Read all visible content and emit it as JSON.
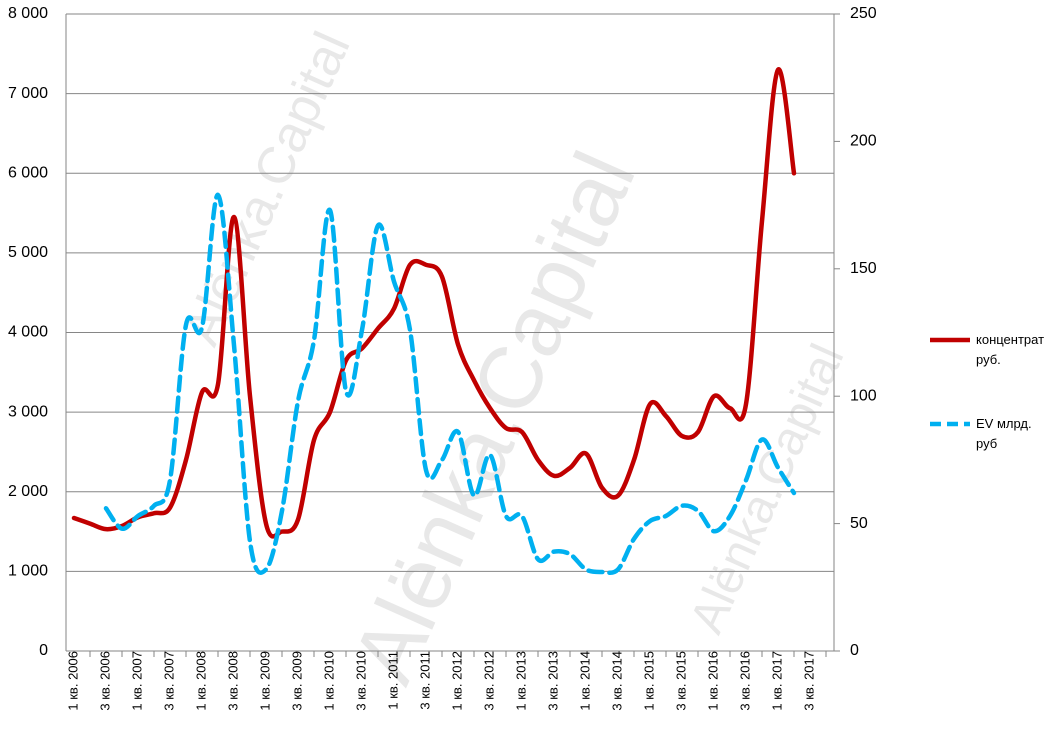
{
  "chart_data": {
    "type": "line",
    "watermark": "Alёnka.Capital",
    "categories": [
      "1 кв. 2006",
      null,
      "3 кв. 2006",
      null,
      "1 кв. 2007",
      null,
      "3 кв. 2007",
      null,
      "1 кв. 2008",
      null,
      "3 кв. 2008",
      null,
      "1 кв. 2009",
      null,
      "3 кв. 2009",
      null,
      "1 кв. 2010",
      null,
      "3 кв. 2010",
      null,
      "1 кв. 2011",
      null,
      "3 кв. 2011",
      null,
      "1 кв. 2012",
      null,
      "3 кв. 2012",
      null,
      "1 кв. 2013",
      null,
      "3 кв. 2013",
      null,
      "1 кв. 2014",
      null,
      "3 кв. 2014",
      null,
      "1 кв. 2015",
      null,
      "3 кв. 2015",
      null,
      "1 кв. 2016",
      null,
      "3 кв. 2016",
      null,
      "1 кв. 2017",
      null,
      "3 кв. 2017",
      null
    ],
    "series": [
      {
        "name": "концентрат руб.",
        "color": "#c00000",
        "dash": false,
        "values": [
          1670,
          1600,
          1530,
          1570,
          1680,
          1730,
          1800,
          2400,
          3250,
          3350,
          5450,
          3200,
          1600,
          1500,
          1650,
          2650,
          3000,
          3650,
          3800,
          4050,
          4300,
          4850,
          4850,
          4700,
          3850,
          3400,
          3050,
          2800,
          2750,
          2400,
          2200,
          2300,
          2480,
          2050,
          1950,
          2400,
          3100,
          2950,
          2700,
          2750,
          3200,
          3050,
          3100,
          5400,
          7300,
          6000,
          null,
          null
        ]
      },
      {
        "name": "EV млрд. руб",
        "color": "#00b0f0",
        "dash": true,
        "axis": "y2",
        "values": [
          null,
          null,
          56,
          48,
          53,
          57,
          67,
          128,
          127,
          179,
          120,
          43,
          32,
          55,
          98,
          122,
          173,
          102,
          126,
          167,
          145,
          126,
          71,
          75,
          86,
          61,
          77,
          53,
          53,
          36,
          39,
          38,
          32,
          31,
          32,
          44,
          51,
          53,
          57,
          55,
          47,
          53,
          67,
          83,
          72,
          62,
          null,
          null
        ]
      }
    ],
    "ylim": [
      0,
      8000
    ],
    "yticks": [
      0,
      {
        "value": 1000,
        "label": "1 000"
      },
      {
        "value": 2000,
        "label": "2 000"
      },
      {
        "value": 3000,
        "label": "3 000"
      },
      {
        "value": 4000,
        "label": "4 000"
      },
      {
        "value": 5000,
        "label": "5 000"
      },
      {
        "value": 6000,
        "label": "6 000"
      },
      {
        "value": 7000,
        "label": "7 000"
      },
      {
        "value": 8000,
        "label": "8 000"
      }
    ],
    "y2lim": [
      0,
      250
    ],
    "y2ticks": [
      0,
      50,
      100,
      150,
      200,
      250
    ],
    "grid": true,
    "legend": "right"
  }
}
